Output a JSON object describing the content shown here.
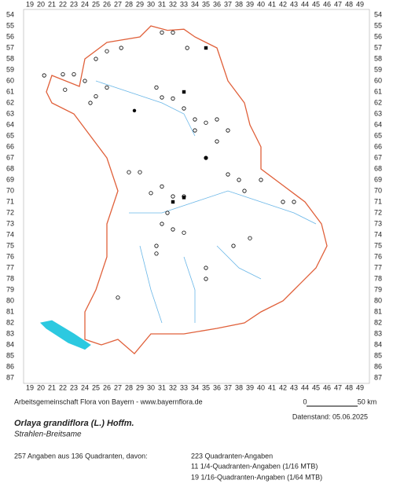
{
  "map": {
    "columns": [
      19,
      20,
      21,
      22,
      23,
      24,
      25,
      26,
      27,
      28,
      29,
      30,
      31,
      32,
      33,
      34,
      35,
      36,
      37,
      38,
      39,
      40,
      41,
      42,
      43,
      44,
      45,
      46,
      47,
      48,
      49
    ],
    "rows": [
      54,
      55,
      56,
      57,
      58,
      59,
      60,
      61,
      62,
      63,
      64,
      65,
      66,
      67,
      68,
      69,
      70,
      71,
      72,
      73,
      74,
      75,
      76,
      77,
      78,
      79,
      80,
      81,
      82,
      83,
      84,
      85,
      86,
      87
    ],
    "scale": {
      "start": "0",
      "end": "50 km"
    }
  },
  "footer": {
    "credit": "Arbeitsgemeinschaft Flora von Bayern - www.bayernflora.de",
    "date": "Datenstand: 05.06.2025",
    "title": "Orlaya grandiflora (L.) Hoffm.",
    "subtitle": "Strahlen-Breitsame",
    "summary": "257 Angaben aus 136 Quadranten, davon:",
    "counts": [
      "223 Quadranten-Angaben",
      "11 1/4-Quadranten-Angaben (1/16 MTB)",
      "19 1/16-Quadranten-Angaben (1/64 MTB)"
    ]
  }
}
